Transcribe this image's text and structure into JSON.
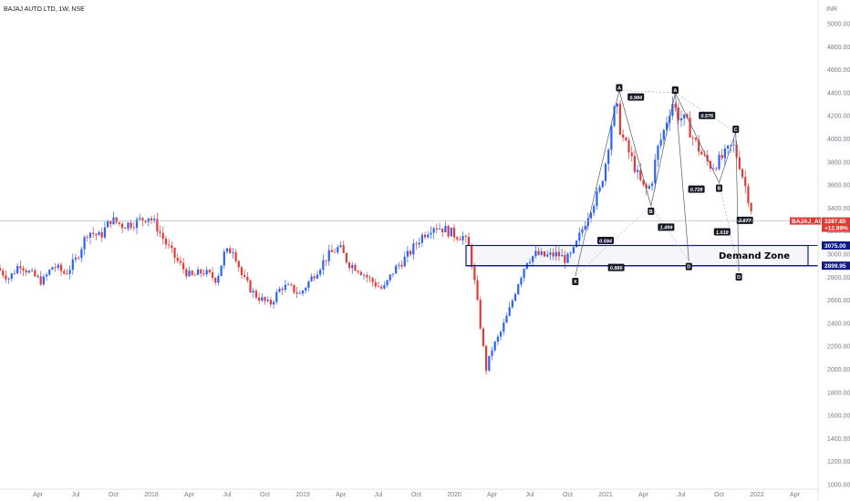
{
  "chart_data": {
    "type": "candlestick",
    "title": "BAJAJ AUTO LTD, 1W, NSE",
    "currency": "INR",
    "ylim": [
      1000,
      5000
    ],
    "y_ticks": [
      "1000.00",
      "1200.00",
      "1400.00",
      "1600.00",
      "1800.00",
      "2000.00",
      "2200.00",
      "2400.00",
      "2600.00",
      "2800.00",
      "3000.00",
      "3200.00",
      "3400.00",
      "3600.00",
      "3800.00",
      "4000.00",
      "4200.00",
      "4400.00",
      "4600.00",
      "4800.00",
      "5000.00"
    ],
    "x_ticks": [
      {
        "label": "Apr",
        "t": 2017.25
      },
      {
        "label": "Jul",
        "t": 2017.5
      },
      {
        "label": "Oct",
        "t": 2017.75
      },
      {
        "label": "2018",
        "t": 2018.0
      },
      {
        "label": "Apr",
        "t": 2018.25
      },
      {
        "label": "Jul",
        "t": 2018.5
      },
      {
        "label": "Oct",
        "t": 2018.75
      },
      {
        "label": "2019",
        "t": 2019.0
      },
      {
        "label": "Apr",
        "t": 2019.25
      },
      {
        "label": "Jul",
        "t": 2019.5
      },
      {
        "label": "Oct",
        "t": 2019.75
      },
      {
        "label": "2020",
        "t": 2020.0
      },
      {
        "label": "Apr",
        "t": 2020.25
      },
      {
        "label": "Jul",
        "t": 2020.5
      },
      {
        "label": "Oct",
        "t": 2020.75
      },
      {
        "label": "2021",
        "t": 2021.0
      },
      {
        "label": "Apr",
        "t": 2021.25
      },
      {
        "label": "Jul",
        "t": 2021.5
      },
      {
        "label": "Oct",
        "t": 2021.75
      },
      {
        "label": "2022",
        "t": 2022.0
      },
      {
        "label": "Apr",
        "t": 2022.25
      },
      {
        "label": "Jul",
        "t": 2022.5
      }
    ],
    "up_color": "#2962ff",
    "down_color": "#e53935",
    "price_path": [
      [
        2017.0,
        2880
      ],
      [
        2017.08,
        2790
      ],
      [
        2017.15,
        2920
      ],
      [
        2017.22,
        2830
      ],
      [
        2017.3,
        2760
      ],
      [
        2017.37,
        2900
      ],
      [
        2017.45,
        2830
      ],
      [
        2017.52,
        2950
      ],
      [
        2017.6,
        3200
      ],
      [
        2017.68,
        3150
      ],
      [
        2017.75,
        3300
      ],
      [
        2017.83,
        3250
      ],
      [
        2017.92,
        3280
      ],
      [
        2018.0,
        3330
      ],
      [
        2018.05,
        3250
      ],
      [
        2018.12,
        3080
      ],
      [
        2018.2,
        2920
      ],
      [
        2018.28,
        2800
      ],
      [
        2018.36,
        2850
      ],
      [
        2018.45,
        2780
      ],
      [
        2018.5,
        3000
      ],
      [
        2018.56,
        3050
      ],
      [
        2018.62,
        2800
      ],
      [
        2018.7,
        2650
      ],
      [
        2018.8,
        2560
      ],
      [
        2018.88,
        2720
      ],
      [
        2018.95,
        2700
      ],
      [
        2019.0,
        2650
      ],
      [
        2019.08,
        2800
      ],
      [
        2019.18,
        2980
      ],
      [
        2019.26,
        3060
      ],
      [
        2019.32,
        2920
      ],
      [
        2019.38,
        2880
      ],
      [
        2019.46,
        2780
      ],
      [
        2019.55,
        2690
      ],
      [
        2019.62,
        2860
      ],
      [
        2019.72,
        3000
      ],
      [
        2019.8,
        3150
      ],
      [
        2019.88,
        3250
      ],
      [
        2019.95,
        3220
      ],
      [
        2020.02,
        3170
      ],
      [
        2020.08,
        3150
      ],
      [
        2020.12,
        3050
      ],
      [
        2020.16,
        2700
      ],
      [
        2020.2,
        2300
      ],
      [
        2020.23,
        2000
      ],
      [
        2020.27,
        2180
      ],
      [
        2020.32,
        2300
      ],
      [
        2020.38,
        2500
      ],
      [
        2020.44,
        2750
      ],
      [
        2020.5,
        2950
      ],
      [
        2020.56,
        3000
      ],
      [
        2020.62,
        2980
      ],
      [
        2020.7,
        3000
      ],
      [
        2020.76,
        2950
      ],
      [
        2020.8,
        3000
      ],
      [
        2020.86,
        3200
      ],
      [
        2020.92,
        3400
      ],
      [
        2020.98,
        3550
      ],
      [
        2021.02,
        3800
      ],
      [
        2021.06,
        4150
      ],
      [
        2021.09,
        4300
      ],
      [
        2021.12,
        4050
      ],
      [
        2021.16,
        3920
      ],
      [
        2021.2,
        3800
      ],
      [
        2021.24,
        3650
      ],
      [
        2021.28,
        3550
      ],
      [
        2021.32,
        3600
      ],
      [
        2021.36,
        3900
      ],
      [
        2021.4,
        4050
      ],
      [
        2021.43,
        4200
      ],
      [
        2021.46,
        4320
      ],
      [
        2021.5,
        4200
      ],
      [
        2021.55,
        4150
      ],
      [
        2021.6,
        4000
      ],
      [
        2021.66,
        3850
      ],
      [
        2021.72,
        3760
      ],
      [
        2021.76,
        3800
      ],
      [
        2021.8,
        3850
      ],
      [
        2021.83,
        3900
      ],
      [
        2021.86,
        3950
      ],
      [
        2021.9,
        3800
      ],
      [
        2021.94,
        3600
      ],
      [
        2021.97,
        3450
      ],
      [
        2022.0,
        3300
      ]
    ],
    "current_price": 3287.85,
    "current_price_text": "3287.85",
    "change_text": "+12.89%",
    "symbol_tag": "BAJAJ_AUTO",
    "demand_zone": {
      "label": "Demand Zone",
      "top": 3075.0,
      "bottom": 2899.95,
      "top_text": "3075.00",
      "bottom_text": "2899.95"
    },
    "harmonic_1": {
      "points": [
        {
          "label": "X",
          "t": 2020.8,
          "y": 2810
        },
        {
          "label": "A",
          "t": 2021.09,
          "y": 4420
        },
        {
          "label": "B",
          "t": 2021.3,
          "y": 3420
        },
        {
          "label": "C",
          "t": 2021.46,
          "y": 4400
        },
        {
          "label": "D",
          "t": 2021.55,
          "y": 2940
        }
      ],
      "ratios": [
        {
          "text": "0.984",
          "t": 2021.2,
          "y": 4360
        },
        {
          "text": "0.594",
          "t": 2021.0,
          "y": 3115
        },
        {
          "text": "1.499",
          "t": 2021.4,
          "y": 3230
        },
        {
          "text": "0.886",
          "t": 2021.07,
          "y": 2880
        }
      ]
    },
    "harmonic_2": {
      "points": [
        {
          "label": "A",
          "t": 2021.46,
          "y": 4400
        },
        {
          "label": "B",
          "t": 2021.75,
          "y": 3620
        },
        {
          "label": "C",
          "t": 2021.86,
          "y": 4060
        },
        {
          "label": "D",
          "t": 2021.88,
          "y": 2850
        }
      ],
      "ratios": [
        {
          "text": "0.728",
          "t": 2021.6,
          "y": 3560
        },
        {
          "text": "0.576",
          "t": 2021.67,
          "y": 4200
        },
        {
          "text": "1.618",
          "t": 2021.77,
          "y": 3190
        },
        {
          "text": "2.877",
          "t": 2021.92,
          "y": 3290
        }
      ]
    }
  }
}
